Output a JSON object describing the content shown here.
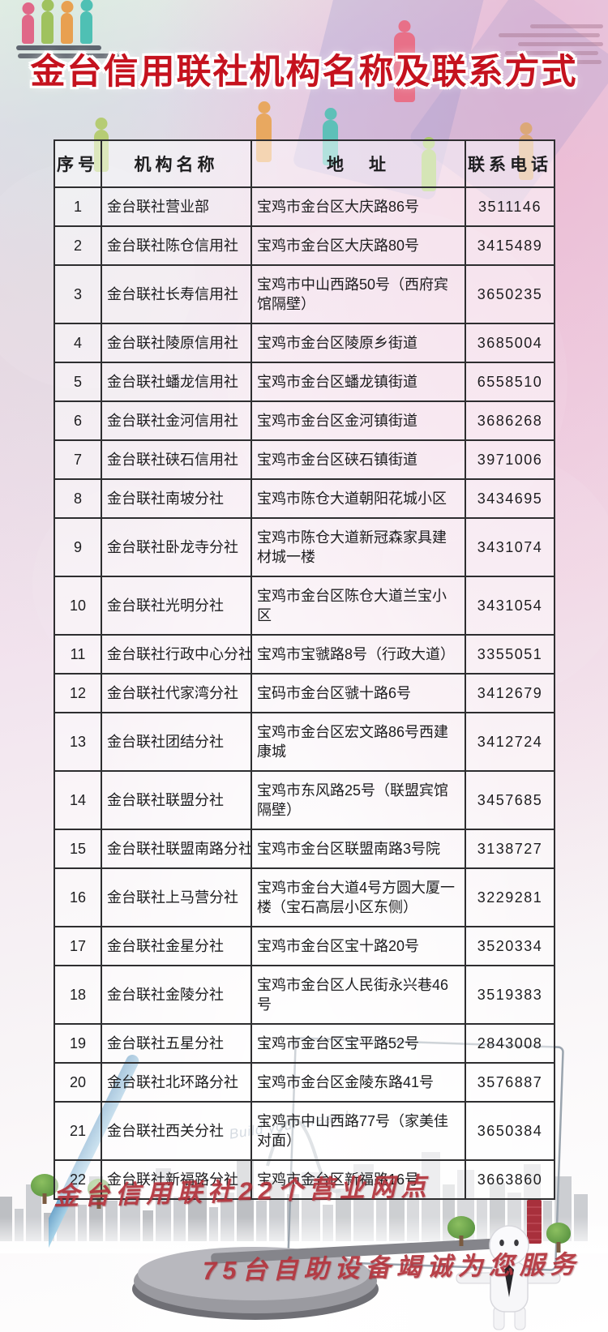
{
  "title": "金台信用联社机构名称及联系方式",
  "table": {
    "headers": [
      "序号",
      "机构名称",
      "地　址",
      "联系电话"
    ],
    "rows": [
      {
        "seq": "1",
        "name": "金台联社营业部",
        "address": "宝鸡市金台区大庆路86号",
        "phone": "3511146"
      },
      {
        "seq": "2",
        "name": "金台联社陈仓信用社",
        "address": "宝鸡市金台区大庆路80号",
        "phone": "3415489"
      },
      {
        "seq": "3",
        "name": "金台联社长寿信用社",
        "address": "宝鸡市中山西路50号（西府宾馆隔壁）",
        "phone": "3650235"
      },
      {
        "seq": "4",
        "name": "金台联社陵原信用社",
        "address": "宝鸡市金台区陵原乡街道",
        "phone": "3685004"
      },
      {
        "seq": "5",
        "name": "金台联社蟠龙信用社",
        "address": "宝鸡市金台区蟠龙镇街道",
        "phone": "6558510"
      },
      {
        "seq": "6",
        "name": "金台联社金河信用社",
        "address": "宝鸡市金台区金河镇街道",
        "phone": "3686268"
      },
      {
        "seq": "7",
        "name": "金台联社硖石信用社",
        "address": "宝鸡市金台区硖石镇街道",
        "phone": "3971006"
      },
      {
        "seq": "8",
        "name": "金台联社南坡分社",
        "address": "宝鸡市陈仓大道朝阳花城小区",
        "phone": "3434695"
      },
      {
        "seq": "9",
        "name": "金台联社卧龙寺分社",
        "address": "宝鸡市陈仓大道新冠森家具建材城一楼",
        "phone": "3431074"
      },
      {
        "seq": "10",
        "name": "金台联社光明分社",
        "address": "宝鸡市金台区陈仓大道兰宝小区",
        "phone": "3431054"
      },
      {
        "seq": "11",
        "name": "金台联社行政中心分社",
        "address": "宝鸡市宝虢路8号（行政大道）",
        "phone": "3355051"
      },
      {
        "seq": "12",
        "name": "金台联社代家湾分社",
        "address": "宝码市金台区虢十路6号",
        "phone": "3412679"
      },
      {
        "seq": "13",
        "name": "金台联社团结分社",
        "address": "宝鸡市金台区宏文路86号西建康城",
        "phone": "3412724"
      },
      {
        "seq": "14",
        "name": "金台联社联盟分社",
        "address": "宝鸡市东风路25号（联盟宾馆隔壁）",
        "phone": "3457685"
      },
      {
        "seq": "15",
        "name": "金台联社联盟南路分社",
        "address": "宝鸡市金台区联盟南路3号院",
        "phone": "3138727"
      },
      {
        "seq": "16",
        "name": "金台联社上马营分社",
        "address": "宝鸡市金台大道4号方圆大厦一楼（宝石高层小区东侧）",
        "phone": "3229281"
      },
      {
        "seq": "17",
        "name": "金台联社金星分社",
        "address": "宝鸡市金台区宝十路20号",
        "phone": "3520334"
      },
      {
        "seq": "18",
        "name": "金台联社金陵分社",
        "address": "宝鸡市金台区人民街永兴巷46号",
        "phone": "3519383"
      },
      {
        "seq": "19",
        "name": "金台联社五星分社",
        "address": "宝鸡市金台区宝平路52号",
        "phone": "2843008"
      },
      {
        "seq": "20",
        "name": "金台联社北环路分社",
        "address": "宝鸡市金台区金陵东路41号",
        "phone": "3576887"
      },
      {
        "seq": "21",
        "name": "金台联社西关分社",
        "address": "宝鸡市中山西路77号（家美佳对面）",
        "phone": "3650384"
      },
      {
        "seq": "22",
        "name": "金台联社新福路分社",
        "address": "宝鸡市金台区新福路16号",
        "phone": "3663860"
      }
    ]
  },
  "footer": {
    "line1": "金台信用联社22个营业网点",
    "line2": "75台自助设备竭诚为您服务"
  },
  "decor": {
    "sketch_note": "Build your dream!"
  },
  "colors": {
    "title_red": "#c5121e",
    "footer_red": "#b3333c",
    "table_border": "#2e2e30"
  }
}
